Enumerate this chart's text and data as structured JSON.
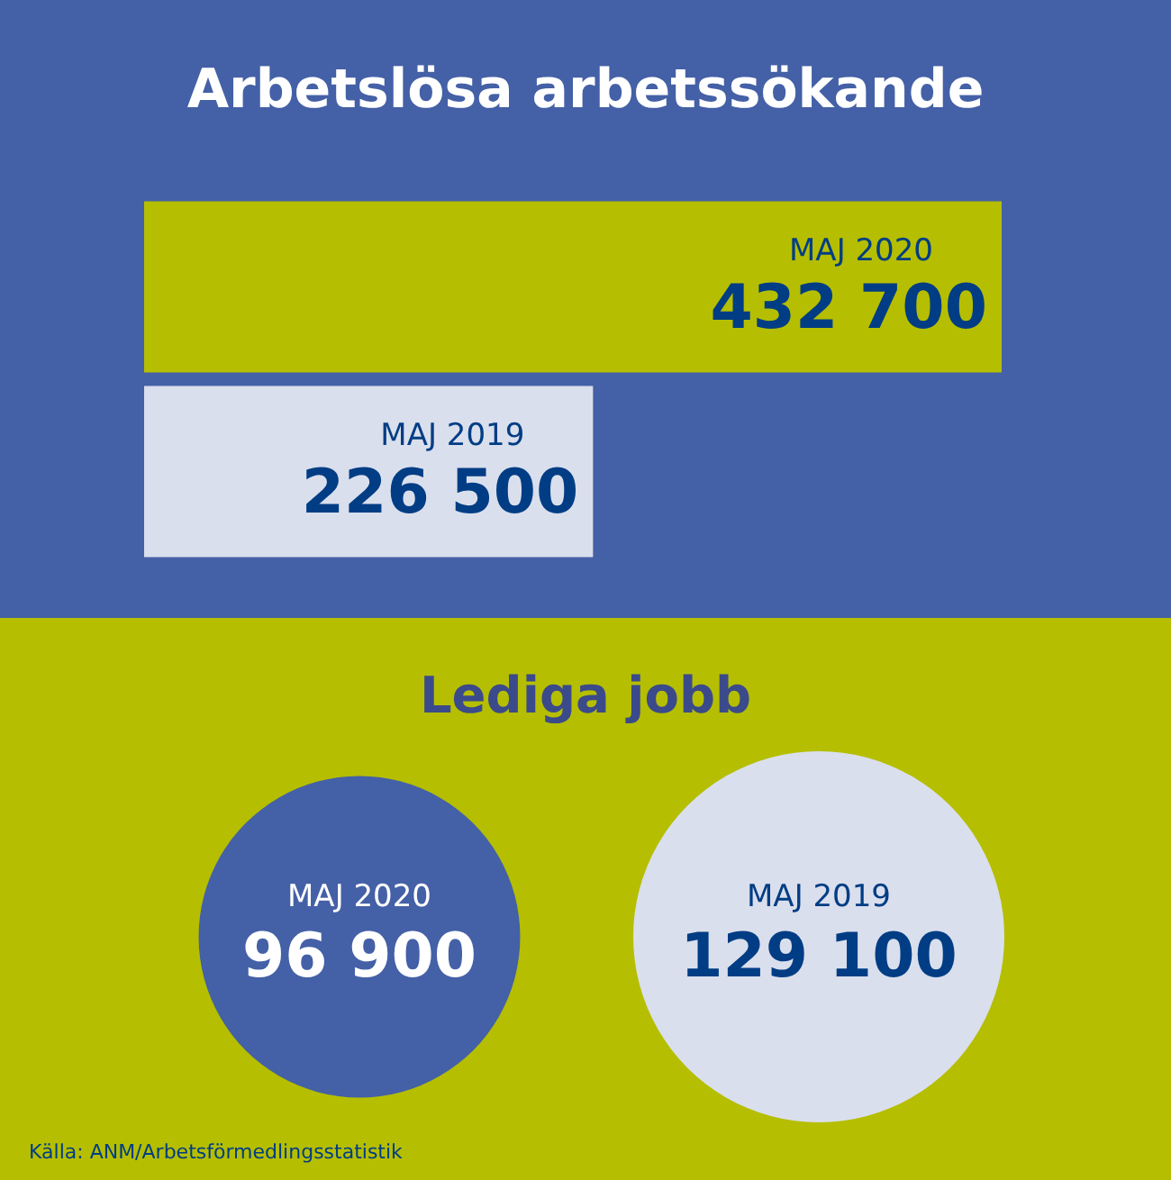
{
  "chart_data": [
    {
      "type": "bar",
      "orientation": "horizontal",
      "title": "Arbetslösa arbetssökande",
      "categories": [
        "MAJ 2020",
        "MAJ 2019"
      ],
      "values": [
        432700,
        226500
      ],
      "value_labels": [
        "432 700",
        "226 500"
      ],
      "colors": [
        "#b5be00",
        "#dadfed"
      ]
    },
    {
      "type": "other",
      "title": "Lediga jobb",
      "categories": [
        "MAJ 2020",
        "MAJ 2019"
      ],
      "values": [
        96900,
        129100
      ],
      "value_labels": [
        "96 900",
        "129 100"
      ],
      "annotations": [
        "Källa: ANM/Arbetsförmedlingsstatistik"
      ]
    }
  ]
}
